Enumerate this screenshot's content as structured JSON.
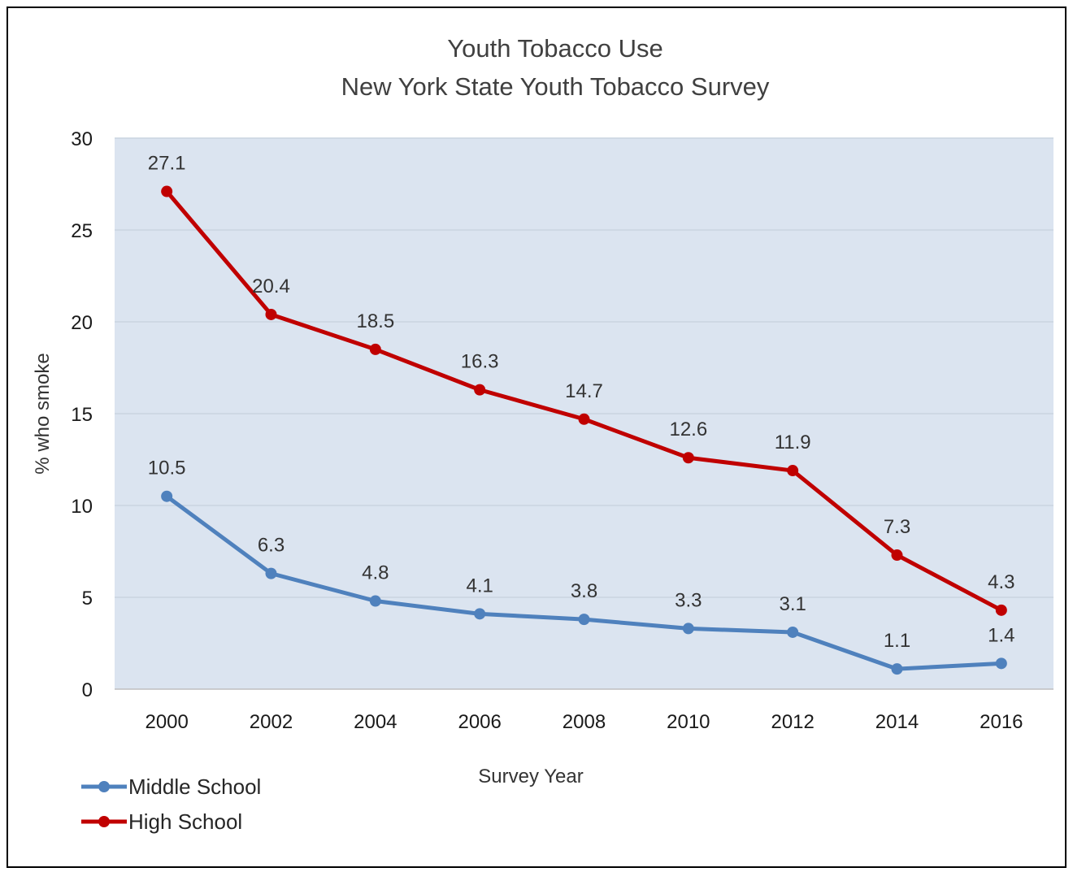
{
  "chart_data": {
    "type": "line",
    "title": "Youth Tobacco Use",
    "subtitle": "New York State Youth Tobacco Survey",
    "xlabel": "Survey Year",
    "ylabel": "% who smoke",
    "categories": [
      "2000",
      "2002",
      "2004",
      "2006",
      "2008",
      "2010",
      "2012",
      "2014",
      "2016"
    ],
    "ylim": [
      0,
      30
    ],
    "yticks": [
      0,
      5,
      10,
      15,
      20,
      25,
      30
    ],
    "grid": true,
    "legend_position": "bottom-left",
    "series": [
      {
        "name": "Middle School",
        "color": "#4f81bd",
        "values": [
          10.5,
          6.3,
          4.8,
          4.1,
          3.8,
          3.3,
          3.1,
          1.1,
          1.4
        ],
        "labels": [
          "10.5",
          "6.3",
          "4.8",
          "4.1",
          "3.8",
          "3.3",
          "3.1",
          "1.1",
          "1.4"
        ]
      },
      {
        "name": "High School",
        "color": "#c00000",
        "values": [
          27.1,
          20.4,
          18.5,
          16.3,
          14.7,
          12.6,
          11.9,
          7.3,
          4.3
        ],
        "labels": [
          "27.1",
          "20.4",
          "18.5",
          "16.3",
          "14.7",
          "12.6",
          "11.9",
          "7.3",
          "4.3"
        ]
      }
    ],
    "plot_background": "#dbe4f0",
    "gridline_color": "#c9d3e0"
  }
}
